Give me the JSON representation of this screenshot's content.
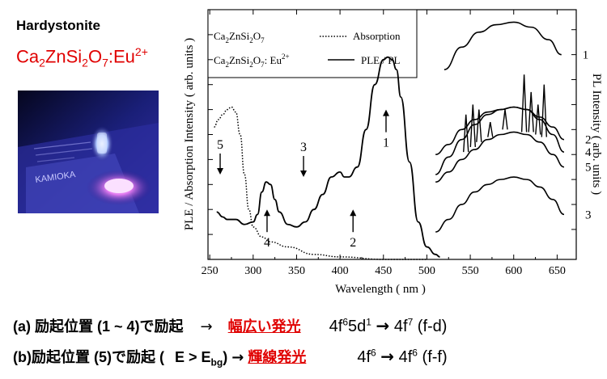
{
  "header": {
    "mineral": "Hardystonite",
    "formula": {
      "a": "Ca",
      "a_sub": "2",
      "b": "ZnSi",
      "b_sub": "2",
      "c": "O",
      "c_sub": "7",
      "d": ":Eu",
      "d_sup": "2+"
    }
  },
  "photo": {
    "label": "KAMIOKA"
  },
  "chart_data": {
    "type": "line",
    "xlabel": "Wavelength ( nm )",
    "ylabel_left": "PLE / Absorption Intensity ( arb. units )",
    "ylabel_right": "PL Intensity ( arb. units )",
    "xlim": [
      248,
      672
    ],
    "x_ticks": [
      250,
      300,
      350,
      400,
      450,
      500,
      550,
      600,
      650
    ],
    "legend": {
      "position": "top-left",
      "entries": [
        {
          "host": "Ca",
          "s1": "2",
          "mid": "ZnSi",
          "s2": "2",
          "o": "O",
          "s3": "7",
          "dopant": "",
          "sup": "",
          "line": "dotted",
          "label": "Absorption"
        },
        {
          "host": "Ca",
          "s1": "2",
          "mid": "ZnSi",
          "s2": "2",
          "o": "O",
          "s3": "7",
          "dopant": ": Eu",
          "sup": "2+",
          "line": "solid",
          "label": "PLE / PL"
        }
      ]
    },
    "absorption": {
      "x": [
        255,
        260,
        265,
        270,
        275,
        280,
        285,
        290,
        295,
        300,
        310,
        320,
        340,
        370,
        400,
        450,
        500
      ],
      "y": [
        0.53,
        0.56,
        0.58,
        0.6,
        0.61,
        0.59,
        0.5,
        0.34,
        0.2,
        0.13,
        0.09,
        0.07,
        0.05,
        0.02,
        0.01,
        0.0,
        0.0
      ]
    },
    "ple": {
      "x": [
        258,
        265,
        270,
        280,
        290,
        300,
        305,
        310,
        315,
        320,
        325,
        330,
        340,
        350,
        360,
        370,
        380,
        390,
        400,
        405,
        410,
        420,
        430,
        440,
        450,
        455,
        460,
        465,
        470,
        480,
        490,
        500,
        510,
        515
      ],
      "y": [
        0.19,
        0.17,
        0.16,
        0.16,
        0.14,
        0.15,
        0.18,
        0.27,
        0.31,
        0.3,
        0.24,
        0.19,
        0.14,
        0.13,
        0.15,
        0.2,
        0.26,
        0.33,
        0.35,
        0.33,
        0.33,
        0.37,
        0.52,
        0.7,
        0.8,
        0.81,
        0.8,
        0.76,
        0.65,
        0.39,
        0.15,
        0.05,
        0.02,
        0.01
      ]
    },
    "pl_curves": [
      {
        "label": "1",
        "x": [
          520,
          540,
          560,
          580,
          600,
          620,
          640,
          655
        ],
        "y": [
          0.76,
          0.85,
          0.91,
          0.94,
          0.95,
          0.93,
          0.88,
          0.82
        ]
      },
      {
        "label": "2",
        "x": [
          510,
          525,
          540,
          555,
          570,
          585,
          600,
          615,
          630,
          645,
          658
        ],
        "y": [
          0.42,
          0.46,
          0.52,
          0.56,
          0.59,
          0.6,
          0.61,
          0.6,
          0.57,
          0.53,
          0.48
        ]
      },
      {
        "label": "4",
        "x": [
          510,
          525,
          540,
          555,
          570,
          585,
          600,
          615,
          630,
          645,
          658
        ],
        "y": [
          0.34,
          0.41,
          0.48,
          0.54,
          0.58,
          0.6,
          0.61,
          0.6,
          0.56,
          0.5,
          0.43
        ]
      },
      {
        "label": "5",
        "x": [
          510,
          525,
          540,
          555,
          570,
          585,
          600,
          615,
          630,
          645,
          658
        ],
        "y": [
          0.31,
          0.35,
          0.4,
          0.44,
          0.48,
          0.5,
          0.51,
          0.5,
          0.47,
          0.42,
          0.37
        ]
      },
      {
        "label": "3",
        "x": [
          510,
          525,
          540,
          555,
          570,
          585,
          600,
          615,
          630,
          645,
          658
        ],
        "y": [
          0.11,
          0.16,
          0.22,
          0.27,
          0.3,
          0.32,
          0.33,
          0.32,
          0.29,
          0.24,
          0.18
        ]
      }
    ],
    "ff_lines": [
      {
        "x": 545,
        "y_peak": 0.58,
        "y_base": 0.43
      },
      {
        "x": 553,
        "y_peak": 0.62,
        "y_base": 0.45
      },
      {
        "x": 560,
        "y_peak": 0.6,
        "y_base": 0.47
      },
      {
        "x": 573,
        "y_peak": 0.55,
        "y_base": 0.49
      },
      {
        "x": 590,
        "y_peak": 0.6,
        "y_base": 0.52
      },
      {
        "x": 612,
        "y_peak": 0.74,
        "y_base": 0.51
      },
      {
        "x": 620,
        "y_peak": 0.67,
        "y_base": 0.51
      },
      {
        "x": 628,
        "y_peak": 0.62,
        "y_base": 0.5
      },
      {
        "x": 635,
        "y_peak": 0.7,
        "y_base": 0.49
      }
    ],
    "markers": [
      {
        "label": "5",
        "x": 262,
        "y": 0.34,
        "dir": "down"
      },
      {
        "label": "4",
        "x": 316,
        "y": 0.2,
        "dir": "up"
      },
      {
        "label": "3",
        "x": 358,
        "y": 0.33,
        "dir": "down"
      },
      {
        "label": "2",
        "x": 415,
        "y": 0.2,
        "dir": "up"
      },
      {
        "label": "1",
        "x": 453,
        "y": 0.6,
        "dir": "up"
      }
    ]
  },
  "notes": {
    "line_a": {
      "prefix": "(a) 励起位置 (1 ~ 4)で励起",
      "arrow": "→",
      "highlight": "幅広い発光",
      "t1": "4f",
      "t1sup": "6",
      "t2": "5d",
      "t2sup": "1",
      "arrow2": "→",
      "t3": "4f",
      "t3sup": "7",
      "t4": " (f-d)"
    },
    "line_b": {
      "prefix": "(b)励起位置 (5)で励起 (",
      "e": "E > E",
      "esub": "bg",
      "close": ")",
      "arrow": "→",
      "highlight": "輝線発光",
      "t1": "4f",
      "t1sup": "6",
      "arrow2": "→",
      "t3": "4f",
      "t3sup": "6",
      "t4": " (f-f)"
    }
  }
}
